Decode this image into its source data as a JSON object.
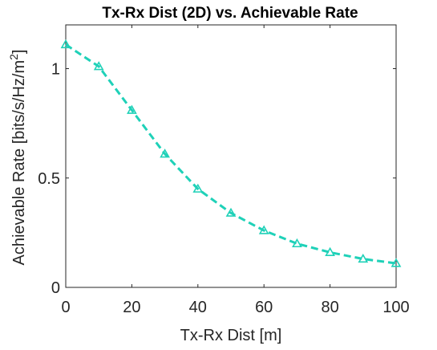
{
  "chart_data": {
    "type": "line",
    "title": "Tx-Rx Dist (2D) vs. Achievable Rate",
    "xlabel": "Tx-Rx Dist [m]",
    "ylabel_main": "Achievable Rate [bits/s/Hz/m",
    "ylabel_sup": "2",
    "ylabel_close": "]",
    "xlim": [
      0,
      100
    ],
    "ylim": [
      0,
      1.2
    ],
    "x_ticks": [
      0,
      20,
      40,
      60,
      80,
      100
    ],
    "x_tick_labels": [
      "0",
      "20",
      "40",
      "60",
      "80",
      "100"
    ],
    "y_ticks": [
      0,
      0.5,
      1
    ],
    "y_tick_labels": [
      "0",
      "0.5",
      "1"
    ],
    "grid": false,
    "series": [
      {
        "color": "#1fd1b8",
        "line_style": "dashed",
        "marker": "triangle",
        "x": [
          0,
          10,
          20,
          30,
          40,
          50,
          60,
          70,
          80,
          90,
          100
        ],
        "y": [
          1.11,
          1.01,
          0.81,
          0.61,
          0.45,
          0.34,
          0.26,
          0.2,
          0.16,
          0.13,
          0.11
        ]
      }
    ]
  }
}
